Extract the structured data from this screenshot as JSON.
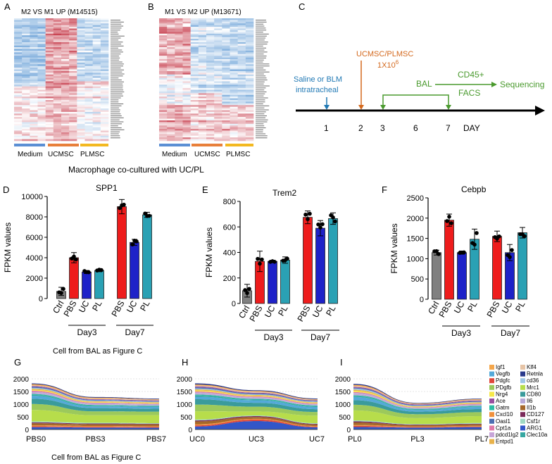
{
  "panel_a": {
    "letter": "A",
    "title": "M2 VS M1 UP (M14515)",
    "groups": [
      {
        "label": "Medium",
        "color": "#5b8fd4"
      },
      {
        "label": "UCMSC",
        "color": "#e87f3a"
      },
      {
        "label": "PLMSC",
        "color": "#f3b820"
      }
    ]
  },
  "panel_b": {
    "letter": "B",
    "title": "M1 VS M2 UP (M13671)",
    "groups": [
      {
        "label": "Medium",
        "color": "#5b8fd4"
      },
      {
        "label": "UCMSC",
        "color": "#e87f3a"
      },
      {
        "label": "PLMSC",
        "color": "#f3b820"
      }
    ]
  },
  "heatmap_caption": "Macrophage co-cultured with UC/PL",
  "panel_c": {
    "letter": "C",
    "saline_label_1": "Saline or BLM",
    "saline_label_2": "intratracheal",
    "msc_label": "UCMSC/PLMSC",
    "dose_base": "1X10",
    "dose_exp": "6",
    "bal_label": "BAL",
    "cd45_label": "CD45+",
    "facs_label": "FACS",
    "seq_label": "Sequencing",
    "day_ticks": [
      "1",
      "2",
      "3",
      "6",
      "7"
    ],
    "day_label": "DAY",
    "colors": {
      "saline": "#1f78b4",
      "msc": "#d4691e",
      "bal": "#4a9a2e"
    }
  },
  "bar_charts_footnote": "Cell from BAL as Figure C",
  "stream_charts_footnote": "Cell from BAL as Figure C",
  "chart_data": [
    {
      "id": "D",
      "type": "bar",
      "title": "SPP1",
      "ylabel": "FPKM values",
      "categories": [
        "Ctrl",
        "PBS",
        "UC",
        "PL",
        "PBS",
        "UC",
        "PL"
      ],
      "values": [
        700,
        4000,
        2600,
        2750,
        9000,
        5500,
        8200
      ],
      "errors": [
        400,
        500,
        150,
        120,
        700,
        300,
        250
      ],
      "colors": [
        "#808080",
        "#ee1c1c",
        "#1e22c8",
        "#2aa1b4",
        "#ee1c1c",
        "#1e22c8",
        "#2aa1b4"
      ],
      "ylim": [
        0,
        10000
      ],
      "yticks": [
        0,
        2000,
        4000,
        6000,
        8000,
        10000
      ],
      "group_labels": [
        "Day3",
        "Day7"
      ]
    },
    {
      "id": "E",
      "type": "bar",
      "title": "Trem2",
      "ylabel": "FPKM values",
      "categories": [
        "Ctrl",
        "PBS",
        "UC",
        "PL",
        "PBS",
        "UC",
        "PL"
      ],
      "values": [
        100,
        330,
        330,
        340,
        675,
        590,
        665
      ],
      "errors": [
        50,
        80,
        8,
        25,
        50,
        60,
        45
      ],
      "colors": [
        "#808080",
        "#ee1c1c",
        "#1e22c8",
        "#2aa1b4",
        "#ee1c1c",
        "#1e22c8",
        "#2aa1b4"
      ],
      "ylim": [
        0,
        800
      ],
      "yticks": [
        0,
        200,
        400,
        600,
        800
      ],
      "group_labels": [
        "Day3",
        "Day7"
      ]
    },
    {
      "id": "F",
      "type": "bar",
      "title": "Cebpb",
      "ylabel": "FPKM values",
      "categories": [
        "Ctrl",
        "PBS",
        "UC",
        "PL",
        "PBS",
        "UC",
        "PL"
      ],
      "values": [
        1150,
        1950,
        1150,
        1480,
        1550,
        1150,
        1640
      ],
      "errors": [
        60,
        150,
        40,
        250,
        130,
        200,
        130
      ],
      "colors": [
        "#808080",
        "#ee1c1c",
        "#1e22c8",
        "#2aa1b4",
        "#ee1c1c",
        "#1e22c8",
        "#2aa1b4"
      ],
      "ylim": [
        0,
        2500
      ],
      "yticks": [
        0,
        500,
        1000,
        1500,
        2000,
        2500
      ],
      "group_labels": [
        "Day3",
        "Day7"
      ]
    },
    {
      "id": "G",
      "type": "area",
      "title": "",
      "x": [
        "PBS0",
        "PBS3",
        "PBS7"
      ],
      "totals": [
        1820,
        1280,
        1220
      ],
      "ylim": [
        0,
        2000
      ],
      "yticks": [
        0,
        500,
        1000,
        1500,
        2000
      ]
    },
    {
      "id": "H",
      "type": "area",
      "title": "",
      "x": [
        "UC0",
        "UC3",
        "UC7"
      ],
      "totals": [
        1820,
        1550,
        1220
      ],
      "ylim": [
        0,
        2000
      ],
      "yticks": [
        0,
        500,
        1000,
        1500,
        2000
      ]
    },
    {
      "id": "I",
      "type": "area",
      "title": "",
      "x": [
        "PL0",
        "PL3",
        "PL7"
      ],
      "totals": [
        1800,
        1050,
        1220
      ],
      "ylim": [
        0,
        2000
      ],
      "yticks": [
        0,
        500,
        1000,
        1500,
        2000
      ]
    }
  ],
  "legend": {
    "col1": [
      {
        "name": "Igf1",
        "color": "#f4a64b"
      },
      {
        "name": "Vegfb",
        "color": "#54a9d9"
      },
      {
        "name": "Pdgfc",
        "color": "#e0473b"
      },
      {
        "name": "PDgfb",
        "color": "#9cc95b"
      },
      {
        "name": "Nrg4",
        "color": "#f6e84a"
      },
      {
        "name": "Ace",
        "color": "#9a4fa0"
      },
      {
        "name": "Gatm",
        "color": "#2ebda5"
      },
      {
        "name": "Cxcl10",
        "color": "#f0913c"
      },
      {
        "name": "Oasl1",
        "color": "#4d6fb2"
      },
      {
        "name": "Cpt1a",
        "color": "#e07aa9"
      },
      {
        "name": "pdcd1lg2",
        "color": "#c7a5d8"
      },
      {
        "name": "Entpd1",
        "color": "#e8b24a"
      }
    ],
    "col2": [
      {
        "name": "Klf4",
        "color": "#e6c4a6"
      },
      {
        "name": "Retnla",
        "color": "#2b3a8c"
      },
      {
        "name": "cd36",
        "color": "#9ec6e6"
      },
      {
        "name": "Mrc1",
        "color": "#b7dd4b"
      },
      {
        "name": "CD80",
        "color": "#3a9b9b"
      },
      {
        "name": "Il6",
        "color": "#b7a9d8"
      },
      {
        "name": "Il1b",
        "color": "#a5682a"
      },
      {
        "name": "CD127",
        "color": "#7b2a5a"
      },
      {
        "name": "Csf1r",
        "color": "#9fd9c4"
      },
      {
        "name": "ARG1",
        "color": "#3256c8"
      },
      {
        "name": "Clec10a",
        "color": "#37a7a1"
      }
    ]
  },
  "letters": {
    "d": "D",
    "e": "E",
    "f": "F",
    "g": "G",
    "h": "H",
    "i": "I"
  }
}
